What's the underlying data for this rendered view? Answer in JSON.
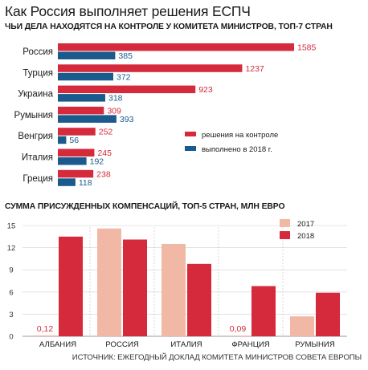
{
  "page_title": "Как Россия выполняет решения ЕСПЧ",
  "source_note": "ИСТОЧНИК: ЕЖЕГОДНЫЙ ДОКЛАД КОМИТЕТА МИНИСТРОВ СОВЕТА ЕВРОПЫ",
  "colors": {
    "red": "#d42a3c",
    "blue": "#1a5a8c",
    "pink": "#f2b8a6"
  },
  "chart_data": [
    {
      "type": "bar",
      "orientation": "horizontal",
      "title": "ЧЬИ ДЕЛА НАХОДЯТСЯ НА КОНТРОЛЕ У КОМИТЕТА МИНИСТРОВ, ТОП-7 СТРАН",
      "categories": [
        "Россия",
        "Турция",
        "Украина",
        "Румыния",
        "Венгрия",
        "Италия",
        "Греция"
      ],
      "series": [
        {
          "name": "решения на контроле",
          "color": "#d42a3c",
          "values": [
            1585,
            1237,
            923,
            309,
            252,
            245,
            238
          ]
        },
        {
          "name": "выполнено в 2018 г.",
          "color": "#1a5a8c",
          "values": [
            385,
            372,
            318,
            393,
            56,
            192,
            118
          ]
        }
      ],
      "xlim": [
        0,
        1585
      ],
      "legend": "right",
      "grid": false
    },
    {
      "type": "bar",
      "title": "СУММА ПРИСУЖДЕННЫХ КОМПЕНСАЦИЙ, ТОП-5 СТРАН, МЛН ЕВРО",
      "categories": [
        "АЛБАНИЯ",
        "РОССИЯ",
        "ИТАЛИЯ",
        "ФРАНЦИЯ",
        "РУМЫНИЯ"
      ],
      "series": [
        {
          "name": "2017",
          "color": "#f2b8a6",
          "values": [
            0.12,
            14.6,
            12.5,
            0.09,
            2.7
          ],
          "labels": [
            "0,12",
            "",
            "",
            "0,09",
            ""
          ]
        },
        {
          "name": "2018",
          "color": "#d42a3c",
          "values": [
            13.5,
            13.1,
            9.8,
            6.8,
            5.9
          ]
        }
      ],
      "yticks": [
        "0",
        "3",
        "6",
        "9",
        "12",
        "15"
      ],
      "ylim": [
        0,
        15
      ],
      "legend": "top-right",
      "grid": true
    }
  ]
}
